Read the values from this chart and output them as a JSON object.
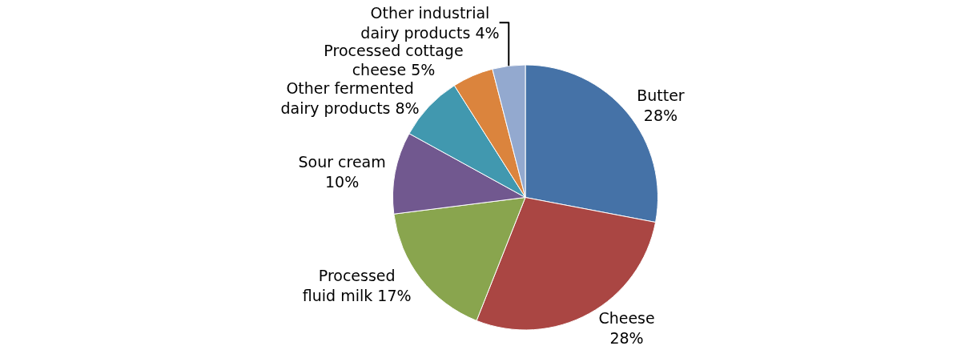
{
  "chart_data": {
    "type": "pie",
    "categories": [
      "Butter",
      "Cheese",
      "Processed\nfluid milk",
      "Sour cream",
      "Other fermented\ndairy products",
      "Processed cottage\ncheese",
      "Other industrial\ndairy products"
    ],
    "values": [
      28,
      28,
      17,
      10,
      8,
      5,
      4
    ],
    "value_labels": [
      "28%",
      "28%",
      "17%",
      "10%",
      "8%",
      "5%",
      "4%"
    ],
    "colors": [
      "#4572a7",
      "#aa4643",
      "#89a54e",
      "#71588f",
      "#4198af",
      "#db843d",
      "#93a9cf"
    ],
    "legend": false
  }
}
